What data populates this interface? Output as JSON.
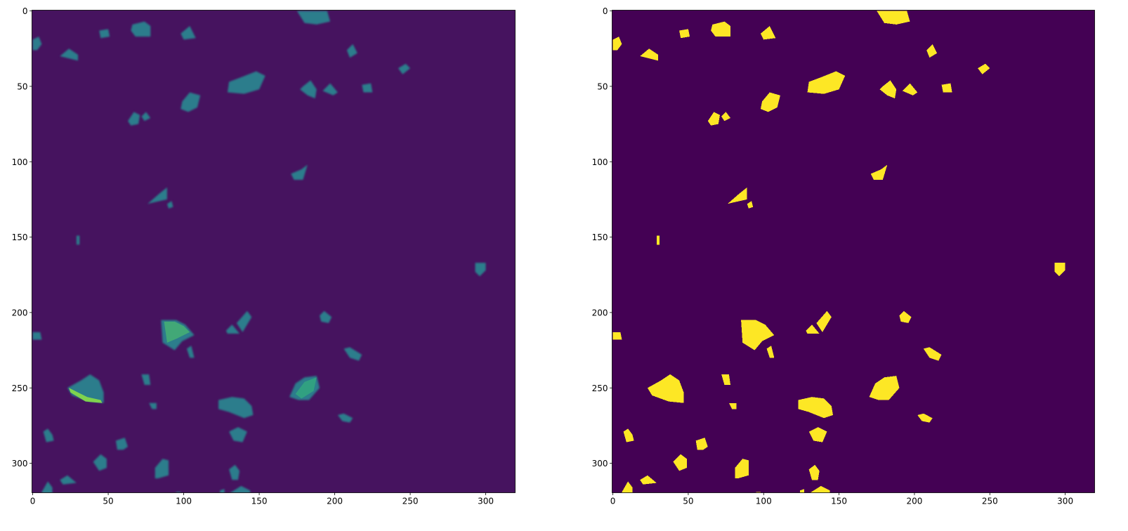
{
  "chart_data": [
    {
      "type": "image",
      "xlim": [
        -0.5,
        319.5
      ],
      "ylim": [
        319.5,
        -0.5
      ],
      "xticks": [
        0,
        50,
        100,
        150,
        200,
        250,
        300
      ],
      "yticks": [
        0,
        50,
        100,
        150,
        200,
        250,
        300
      ],
      "color": "#2c7d8c",
      "background": "#46135f"
    },
    {
      "type": "image",
      "xlim": [
        -0.5,
        319.5
      ],
      "ylim": [
        319.5,
        -0.5
      ],
      "xticks": [
        0,
        50,
        100,
        150,
        200,
        250,
        300
      ],
      "yticks": [
        0,
        50,
        100,
        150,
        200,
        250,
        300
      ],
      "color": "#fde725",
      "background": "#440154"
    }
  ]
}
